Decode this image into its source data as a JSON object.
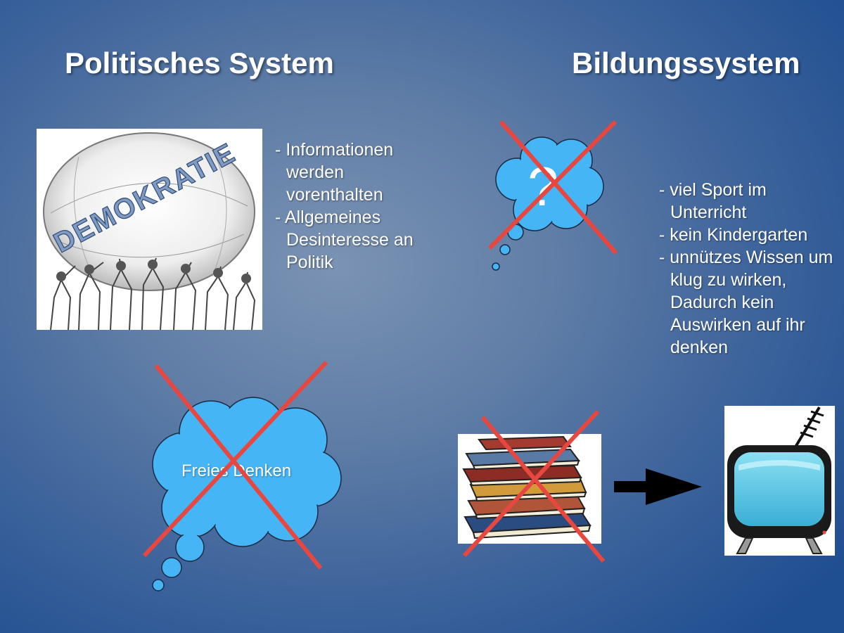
{
  "left": {
    "title": "Politisches System",
    "image_label": "DEMOKRATIE",
    "bullets": [
      "Informationen werden vorenthalten",
      "Allgemeines Desinteresse an Politik"
    ],
    "cloud_label": "Freies Denken"
  },
  "right": {
    "title": "Bildungssystem",
    "question_mark": "?",
    "bullets": [
      "viel Sport im Unterricht",
      "kein Kindergarten",
      "unnützes Wissen um klug zu wirken, Dadurch kein Auswirken auf ihr denken"
    ]
  },
  "colors": {
    "cross": "#e8473f",
    "cloud": "#45b5f5",
    "text": "#ffffff"
  },
  "icons": [
    "demokratie-globe-image",
    "question-cloud-icon",
    "thought-cloud-icon",
    "cross-icon",
    "books-icon",
    "arrow-right-icon",
    "tv-icon"
  ]
}
